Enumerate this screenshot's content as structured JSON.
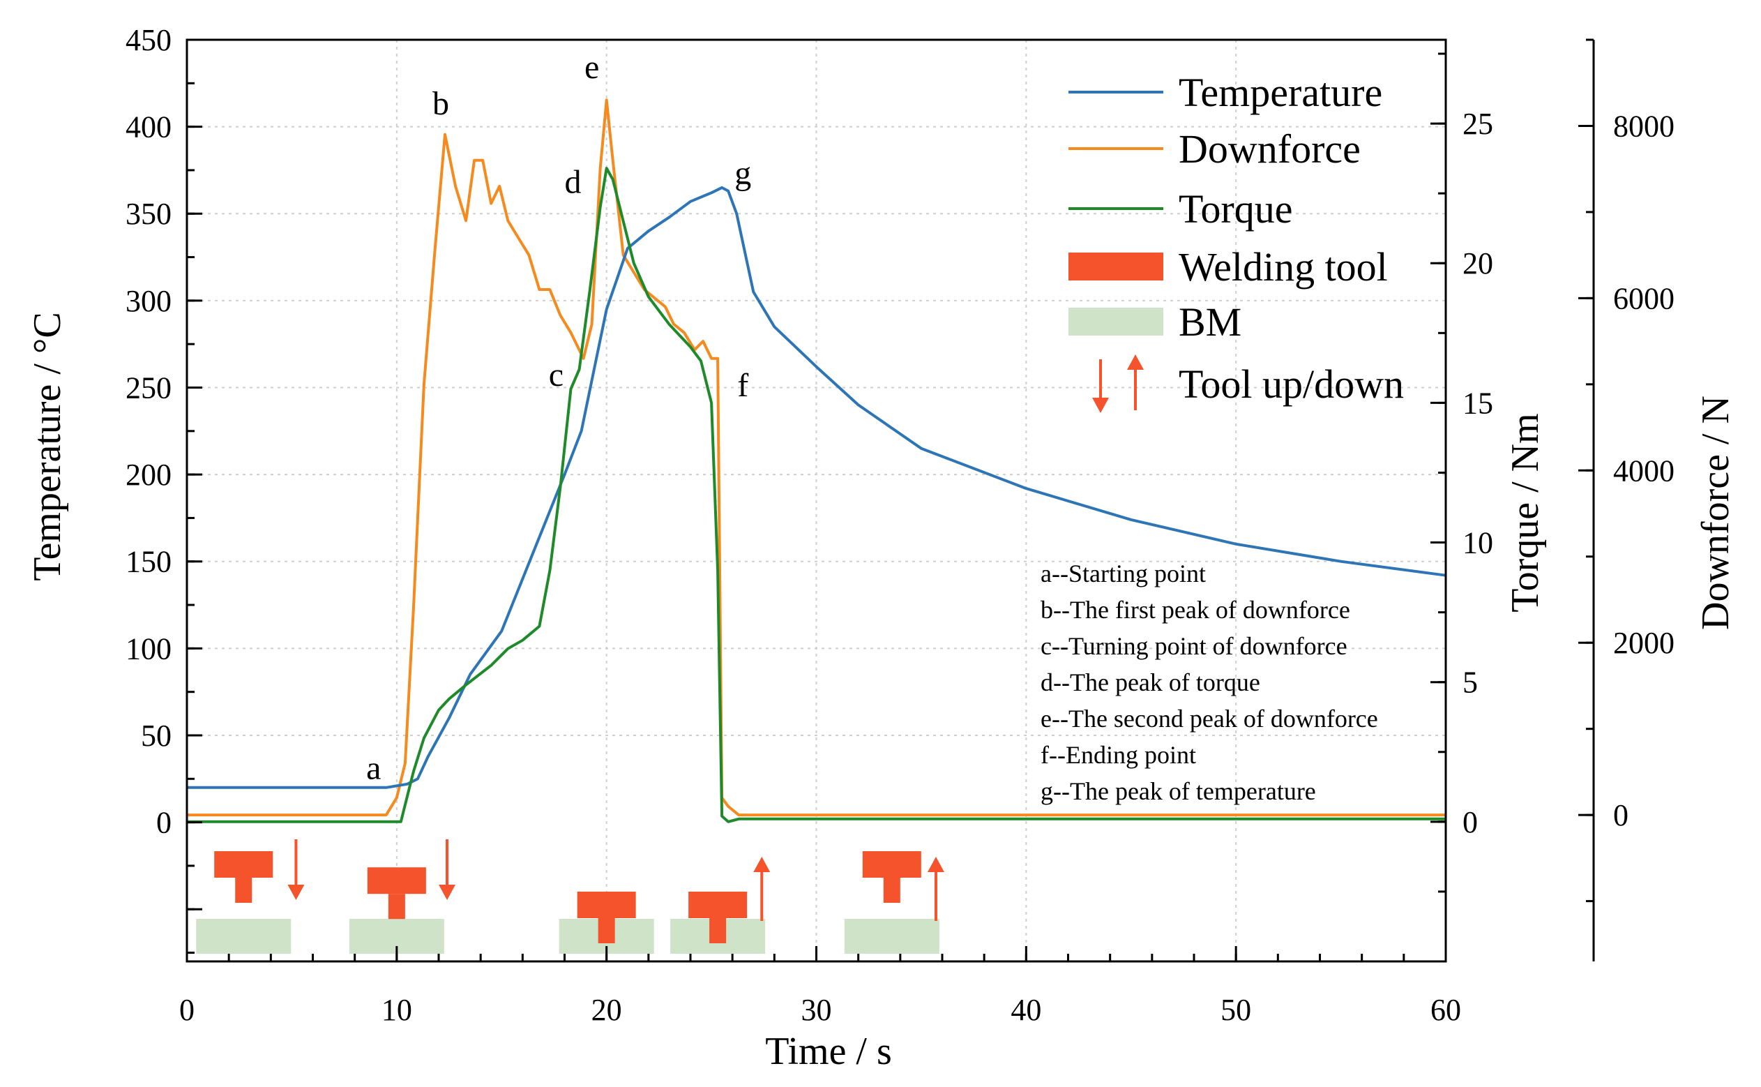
{
  "chart_data": {
    "type": "line",
    "xlabel": "Time / s",
    "x_ticks": [
      0,
      10,
      20,
      30,
      40,
      50,
      60
    ],
    "xlim": [
      0,
      60
    ],
    "axes": {
      "temperature": {
        "label": "Temperature / °C",
        "ylim": [
          -80,
          450
        ],
        "ticks": [
          0,
          50,
          100,
          150,
          200,
          250,
          300,
          350,
          400,
          450
        ]
      },
      "torque": {
        "label": "Torque / Nm",
        "ylim": [
          -5,
          28
        ],
        "ticks": [
          0,
          5,
          10,
          15,
          20,
          25
        ]
      },
      "downforce": {
        "label": "Downforce / N",
        "ylim": [
          -1700,
          9000
        ],
        "ticks": [
          0,
          2000,
          4000,
          6000,
          8000
        ]
      }
    },
    "series": [
      {
        "name": "Temperature",
        "axis": "temperature",
        "color": "#2e75b6",
        "x": [
          0,
          9.5,
          10.5,
          11.0,
          11.5,
          12.5,
          13.5,
          15.0,
          16.0,
          17.0,
          18.0,
          18.8,
          19.4,
          20.0,
          21.0,
          22.0,
          23.0,
          24.0,
          25.0,
          25.5,
          25.8,
          26.2,
          27.0,
          28.0,
          30.0,
          32.0,
          35.0,
          40.0,
          45.0,
          50.0,
          55.0,
          60.0
        ],
        "y": [
          20,
          20,
          22,
          25,
          38,
          60,
          85,
          110,
          140,
          170,
          200,
          225,
          260,
          295,
          330,
          340,
          348,
          357,
          362,
          365,
          363,
          350,
          305,
          285,
          262,
          240,
          215,
          192,
          174,
          160,
          150,
          142
        ]
      },
      {
        "name": "Downforce",
        "axis": "downforce",
        "color": "#f58a1f",
        "x": [
          0,
          9.5,
          10.0,
          10.4,
          10.8,
          11.3,
          11.8,
          12.3,
          12.8,
          13.3,
          13.7,
          14.1,
          14.5,
          14.9,
          15.3,
          15.8,
          16.3,
          16.8,
          17.3,
          17.8,
          18.3,
          18.9,
          19.3,
          19.7,
          20.0,
          20.3,
          20.8,
          21.3,
          21.8,
          22.3,
          22.8,
          23.2,
          23.7,
          24.2,
          24.6,
          25.0,
          25.3,
          25.5,
          25.8,
          26.3,
          30.0,
          40.0,
          50.0,
          60.0
        ],
        "y": [
          0,
          0,
          200,
          600,
          2400,
          5000,
          6500,
          7900,
          7300,
          6900,
          7600,
          7600,
          7100,
          7300,
          6900,
          6700,
          6500,
          6100,
          6100,
          5800,
          5600,
          5300,
          5700,
          7500,
          8300,
          7600,
          6500,
          6300,
          6100,
          6000,
          5900,
          5700,
          5600,
          5400,
          5500,
          5300,
          5300,
          200,
          100,
          0,
          0,
          0,
          0,
          0
        ]
      },
      {
        "name": "Torque",
        "axis": "torque",
        "color": "#1f8a2a",
        "x": [
          0,
          9.5,
          10.2,
          10.8,
          11.3,
          12.0,
          12.5,
          13.3,
          14.5,
          15.3,
          16.0,
          16.8,
          17.3,
          17.8,
          18.3,
          18.7,
          19.2,
          19.7,
          20.0,
          20.3,
          20.8,
          21.3,
          22.0,
          23.0,
          24.0,
          24.5,
          25.0,
          25.3,
          25.5,
          25.8,
          26.3,
          30.0,
          40.0,
          50.0,
          60.0
        ],
        "y": [
          0,
          0,
          0,
          1.8,
          3.0,
          4.0,
          4.4,
          4.9,
          5.6,
          6.2,
          6.5,
          7.0,
          9.0,
          12.0,
          15.5,
          16.2,
          19.0,
          22.0,
          23.4,
          23.0,
          21.5,
          20.0,
          18.8,
          17.8,
          17.0,
          16.5,
          15.0,
          9.0,
          0.2,
          0.0,
          0.1,
          0.1,
          0.1,
          0.1,
          0.1
        ]
      }
    ],
    "point_labels": [
      {
        "label": "a",
        "x": 8.9,
        "temperature": 25
      },
      {
        "label": "b",
        "x": 12.1,
        "temperature": 407
      },
      {
        "label": "c",
        "x": 17.6,
        "temperature": 251
      },
      {
        "label": "d",
        "x": 18.4,
        "temperature": 362
      },
      {
        "label": "e",
        "x": 19.3,
        "temperature": 428
      },
      {
        "label": "f",
        "x": 26.5,
        "temperature": 245
      },
      {
        "label": "g",
        "x": 26.5,
        "temperature": 367
      }
    ],
    "tool_icons": [
      {
        "tool_x": 2.7,
        "tool_depth": 0,
        "bm_x": 2.7,
        "arrow": "down",
        "arrow_x": 5.2
      },
      {
        "tool_x": 10.0,
        "tool_depth": 0.4,
        "bm_x": 10.0,
        "arrow": "down",
        "arrow_x": 12.4
      },
      {
        "tool_x": 20.0,
        "tool_depth": 1,
        "bm_x": 20.0,
        "arrow": "none",
        "arrow_x": 0
      },
      {
        "tool_x": 25.3,
        "tool_depth": 1,
        "bm_x": 25.3,
        "arrow": "up",
        "arrow_x": 27.4
      },
      {
        "tool_x": 33.6,
        "tool_depth": 0,
        "bm_x": 33.6,
        "arrow": "up",
        "arrow_x": 35.7
      }
    ],
    "legend": {
      "placement": "top-right",
      "entries": [
        {
          "label": "Temperature",
          "kind": "line",
          "color": "#2e75b6"
        },
        {
          "label": "Downforce",
          "kind": "line",
          "color": "#f58a1f"
        },
        {
          "label": "Torque",
          "kind": "line",
          "color": "#1f8a2a"
        },
        {
          "label": "Welding tool",
          "kind": "box",
          "color": "#f4532b"
        },
        {
          "label": "BM",
          "kind": "box",
          "color": "#cfe3c8"
        },
        {
          "label": "Tool up/down",
          "kind": "arrows",
          "color": "#f4532b"
        }
      ]
    },
    "annotations": [
      "a--Starting point",
      "b--The first peak of downforce",
      "c--Turning point of downforce",
      "d--The peak of torque",
      "e--The second peak of downforce",
      "f--Ending point",
      "g--The peak of temperature"
    ],
    "grid": true,
    "colors": {
      "tool": "#f4532b",
      "bm": "#cfe3c8",
      "arrow": "#f4532b"
    }
  }
}
